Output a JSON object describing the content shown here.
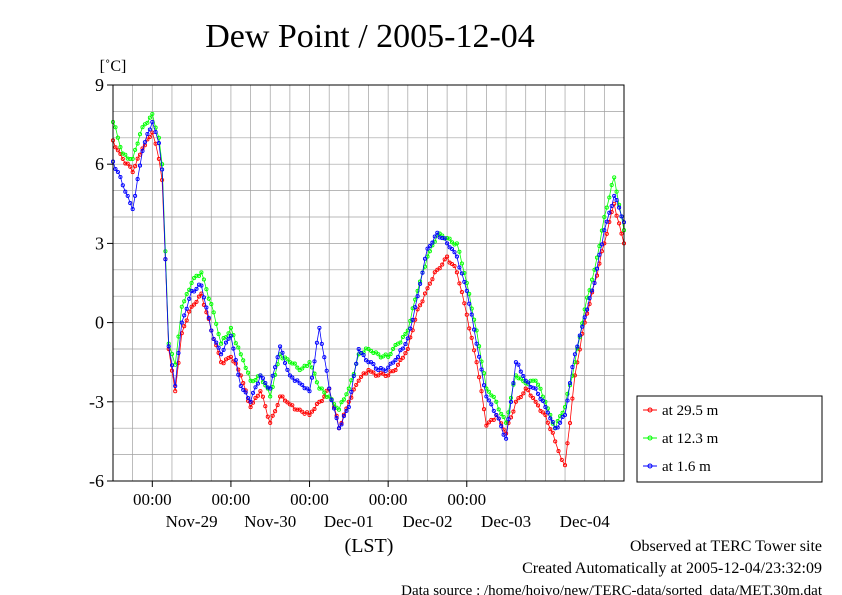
{
  "chart_data": {
    "type": "line",
    "title": "Dew Point / 2005-12-04",
    "ylabel": "[˚C]",
    "xlabel": "(LST)",
    "ylim": [
      -6,
      9
    ],
    "yticks": [
      9,
      6,
      3,
      0,
      -3,
      -6
    ],
    "xlim": [
      "2005-11-28T12:00",
      "2005-12-04T24:00"
    ],
    "time_labels": [
      {
        "time": "2005-11-29T00:00",
        "label": "00:00"
      },
      {
        "time": "2005-11-30T00:00",
        "label": "00:00"
      },
      {
        "time": "2005-12-01T00:00",
        "label": "00:00"
      },
      {
        "time": "2005-12-02T00:00",
        "label": "00:00"
      },
      {
        "time": "2005-12-03T00:00",
        "label": "00:00"
      }
    ],
    "date_labels": [
      {
        "time": "2005-11-29T12:00",
        "label": "Nov-29"
      },
      {
        "time": "2005-11-30T12:00",
        "label": "Nov-30"
      },
      {
        "time": "2005-12-01T12:00",
        "label": "Dec-01"
      },
      {
        "time": "2005-12-02T12:00",
        "label": "Dec-02"
      },
      {
        "time": "2005-12-03T12:00",
        "label": "Dec-03"
      },
      {
        "time": "2005-12-04T12:00",
        "label": "Dec-04"
      }
    ],
    "grid": true,
    "legend_position": "right",
    "series": [
      {
        "name": "at 29.5 m",
        "color": "#ff0000",
        "points": [
          [
            "2005-11-28T12:00",
            6.9
          ],
          [
            "2005-11-28T15:00",
            6.2
          ],
          [
            "2005-11-28T18:00",
            5.7
          ],
          [
            "2005-11-28T21:00",
            6.6
          ],
          [
            "2005-11-29T00:00",
            7.2
          ],
          [
            "2005-11-29T02:00",
            6.2
          ],
          [
            "2005-11-29T03:00",
            5.4
          ],
          [
            "2005-11-29T04:00",
            2.4
          ],
          [
            "2005-11-29T05:00",
            -1.0
          ],
          [
            "2005-11-29T07:00",
            -2.6
          ],
          [
            "2005-11-29T09:00",
            -0.4
          ],
          [
            "2005-11-29T12:00",
            0.6
          ],
          [
            "2005-11-29T15:00",
            1.1
          ],
          [
            "2005-11-29T18:00",
            -0.3
          ],
          [
            "2005-11-29T21:00",
            -1.5
          ],
          [
            "2005-11-30T00:00",
            -1.3
          ],
          [
            "2005-11-30T03:00",
            -2.0
          ],
          [
            "2005-11-30T06:00",
            -3.2
          ],
          [
            "2005-11-30T09:00",
            -2.6
          ],
          [
            "2005-11-30T12:00",
            -3.8
          ],
          [
            "2005-11-30T15:00",
            -2.8
          ],
          [
            "2005-11-30T18:00",
            -3.1
          ],
          [
            "2005-11-30T21:00",
            -3.3
          ],
          [
            "2005-12-01T00:00",
            -3.5
          ],
          [
            "2005-12-01T03:00",
            -3.0
          ],
          [
            "2005-12-01T06:00",
            -2.5
          ],
          [
            "2005-12-01T09:00",
            -4.0
          ],
          [
            "2005-12-01T12:00",
            -3.0
          ],
          [
            "2005-12-01T15:00",
            -2.2
          ],
          [
            "2005-12-01T18:00",
            -1.8
          ],
          [
            "2005-12-01T21:00",
            -2.0
          ],
          [
            "2005-12-02T00:00",
            -2.0
          ],
          [
            "2005-12-02T03:00",
            -1.6
          ],
          [
            "2005-12-02T06:00",
            -1.0
          ],
          [
            "2005-12-02T09:00",
            0.5
          ],
          [
            "2005-12-02T12:00",
            1.3
          ],
          [
            "2005-12-02T15:00",
            2.0
          ],
          [
            "2005-12-02T18:00",
            2.5
          ],
          [
            "2005-12-02T21:00",
            1.9
          ],
          [
            "2005-12-03T00:00",
            0.3
          ],
          [
            "2005-12-03T03:00",
            -1.5
          ],
          [
            "2005-12-03T06:00",
            -3.9
          ],
          [
            "2005-12-03T09:00",
            -3.5
          ],
          [
            "2005-12-03T12:00",
            -4.2
          ],
          [
            "2005-12-03T15:00",
            -3.0
          ],
          [
            "2005-12-03T18:00",
            -2.5
          ],
          [
            "2005-12-03T21:00",
            -3.0
          ],
          [
            "2005-12-04T00:00",
            -3.5
          ],
          [
            "2005-12-04T03:00",
            -4.5
          ],
          [
            "2005-12-04T05:00",
            -5.2
          ],
          [
            "2005-12-04T06:00",
            -5.4
          ],
          [
            "2005-12-04T09:00",
            -2.0
          ],
          [
            "2005-12-04T12:00",
            0.0
          ],
          [
            "2005-12-04T15:00",
            1.5
          ],
          [
            "2005-12-04T18:00",
            3.0
          ],
          [
            "2005-12-04T21:00",
            4.5
          ],
          [
            "2005-12-04T24:00",
            3.0
          ]
        ]
      },
      {
        "name": "at 12.3 m",
        "color": "#00ff00",
        "points": [
          [
            "2005-11-28T12:00",
            7.6
          ],
          [
            "2005-11-28T15:00",
            6.4
          ],
          [
            "2005-11-28T18:00",
            6.2
          ],
          [
            "2005-11-28T21:00",
            7.4
          ],
          [
            "2005-11-29T00:00",
            7.9
          ],
          [
            "2005-11-29T02:00",
            7.0
          ],
          [
            "2005-11-29T03:00",
            6.0
          ],
          [
            "2005-11-29T04:00",
            2.7
          ],
          [
            "2005-11-29T05:00",
            -0.8
          ],
          [
            "2005-11-29T07:00",
            -1.6
          ],
          [
            "2005-11-29T09:00",
            0.6
          ],
          [
            "2005-11-29T12:00",
            1.5
          ],
          [
            "2005-11-29T15:00",
            1.9
          ],
          [
            "2005-11-29T18:00",
            0.7
          ],
          [
            "2005-11-29T21:00",
            -0.8
          ],
          [
            "2005-11-30T00:00",
            -0.2
          ],
          [
            "2005-11-30T03:00",
            -1.2
          ],
          [
            "2005-11-30T06:00",
            -2.2
          ],
          [
            "2005-11-30T09:00",
            -2.0
          ],
          [
            "2005-11-30T12:00",
            -2.8
          ],
          [
            "2005-11-30T15:00",
            -1.2
          ],
          [
            "2005-11-30T18:00",
            -1.5
          ],
          [
            "2005-11-30T21:00",
            -1.8
          ],
          [
            "2005-12-01T00:00",
            -1.5
          ],
          [
            "2005-12-01T03:00",
            -2.5
          ],
          [
            "2005-12-01T06:00",
            -2.8
          ],
          [
            "2005-12-01T09:00",
            -3.3
          ],
          [
            "2005-12-01T12:00",
            -2.5
          ],
          [
            "2005-12-01T15:00",
            -1.2
          ],
          [
            "2005-12-01T18:00",
            -1.0
          ],
          [
            "2005-12-01T21:00",
            -1.2
          ],
          [
            "2005-12-02T00:00",
            -1.3
          ],
          [
            "2005-12-02T03:00",
            -0.8
          ],
          [
            "2005-12-02T06:00",
            -0.3
          ],
          [
            "2005-12-02T09:00",
            1.2
          ],
          [
            "2005-12-02T12:00",
            2.5
          ],
          [
            "2005-12-02T15:00",
            3.3
          ],
          [
            "2005-12-02T18:00",
            3.2
          ],
          [
            "2005-12-02T21:00",
            3.0
          ],
          [
            "2005-12-03T00:00",
            1.5
          ],
          [
            "2005-12-03T03:00",
            -0.3
          ],
          [
            "2005-12-03T06:00",
            -2.5
          ],
          [
            "2005-12-03T09:00",
            -3.0
          ],
          [
            "2005-12-03T12:00",
            -3.8
          ],
          [
            "2005-12-03T15:00",
            -2.0
          ],
          [
            "2005-12-03T18:00",
            -2.3
          ],
          [
            "2005-12-03T21:00",
            -2.2
          ],
          [
            "2005-12-04T00:00",
            -3.0
          ],
          [
            "2005-12-04T03:00",
            -4.0
          ],
          [
            "2005-12-04T06:00",
            -3.2
          ],
          [
            "2005-12-04T09:00",
            -1.5
          ],
          [
            "2005-12-04T12:00",
            0.5
          ],
          [
            "2005-12-04T15:00",
            2.0
          ],
          [
            "2005-12-04T18:00",
            4.0
          ],
          [
            "2005-12-04T21:00",
            5.5
          ],
          [
            "2005-12-04T24:00",
            3.5
          ]
        ]
      },
      {
        "name": "at 1.6 m",
        "color": "#0000ff",
        "points": [
          [
            "2005-11-28T12:00",
            6.1
          ],
          [
            "2005-11-28T15:00",
            5.2
          ],
          [
            "2005-11-28T18:00",
            4.3
          ],
          [
            "2005-11-28T21:00",
            6.5
          ],
          [
            "2005-11-29T00:00",
            7.6
          ],
          [
            "2005-11-29T02:00",
            6.8
          ],
          [
            "2005-11-29T03:00",
            5.8
          ],
          [
            "2005-11-29T04:00",
            2.4
          ],
          [
            "2005-11-29T05:00",
            -0.9
          ],
          [
            "2005-11-29T07:00",
            -2.4
          ],
          [
            "2005-11-29T09:00",
            0.0
          ],
          [
            "2005-11-29T12:00",
            1.2
          ],
          [
            "2005-11-29T15:00",
            1.4
          ],
          [
            "2005-11-29T18:00",
            -0.3
          ],
          [
            "2005-11-29T21:00",
            -1.2
          ],
          [
            "2005-11-30T00:00",
            -0.5
          ],
          [
            "2005-11-30T03:00",
            -2.4
          ],
          [
            "2005-11-30T06:00",
            -3.0
          ],
          [
            "2005-11-30T09:00",
            -2.0
          ],
          [
            "2005-11-30T12:00",
            -2.5
          ],
          [
            "2005-11-30T15:00",
            -0.9
          ],
          [
            "2005-11-30T18:00",
            -2.0
          ],
          [
            "2005-11-30T21:00",
            -2.3
          ],
          [
            "2005-12-01T00:00",
            -2.6
          ],
          [
            "2005-12-01T03:00",
            -0.2
          ],
          [
            "2005-12-01T06:00",
            -2.5
          ],
          [
            "2005-12-01T09:00",
            -4.0
          ],
          [
            "2005-12-01T12:00",
            -3.2
          ],
          [
            "2005-12-01T15:00",
            -1.0
          ],
          [
            "2005-12-01T18:00",
            -1.5
          ],
          [
            "2005-12-01T21:00",
            -1.8
          ],
          [
            "2005-12-02T00:00",
            -1.7
          ],
          [
            "2005-12-02T03:00",
            -1.3
          ],
          [
            "2005-12-02T06:00",
            -0.6
          ],
          [
            "2005-12-02T09:00",
            1.0
          ],
          [
            "2005-12-02T12:00",
            2.8
          ],
          [
            "2005-12-02T15:00",
            3.4
          ],
          [
            "2005-12-02T18:00",
            3.0
          ],
          [
            "2005-12-02T21:00",
            2.5
          ],
          [
            "2005-12-03T00:00",
            1.2
          ],
          [
            "2005-12-03T03:00",
            -0.8
          ],
          [
            "2005-12-03T06:00",
            -2.8
          ],
          [
            "2005-12-03T09:00",
            -3.5
          ],
          [
            "2005-12-03T12:00",
            -4.4
          ],
          [
            "2005-12-03T15:00",
            -1.5
          ],
          [
            "2005-12-03T18:00",
            -2.2
          ],
          [
            "2005-12-03T21:00",
            -2.5
          ],
          [
            "2005-12-04T00:00",
            -3.2
          ],
          [
            "2005-12-04T03:00",
            -4.0
          ],
          [
            "2005-12-04T06:00",
            -3.5
          ],
          [
            "2005-12-04T09:00",
            -1.2
          ],
          [
            "2005-12-04T12:00",
            0.2
          ],
          [
            "2005-12-04T15:00",
            1.5
          ],
          [
            "2005-12-04T18:00",
            3.5
          ],
          [
            "2005-12-04T21:00",
            4.8
          ],
          [
            "2005-12-04T24:00",
            3.8
          ]
        ]
      }
    ]
  },
  "footer": {
    "line1": "Observed at TERC Tower site",
    "line2": "Created Automatically at 2005-12-04/23:32:09",
    "line3": "Data source : /home/hoivo/new/TERC-data/sorted_data/MET.30m.dat"
  }
}
